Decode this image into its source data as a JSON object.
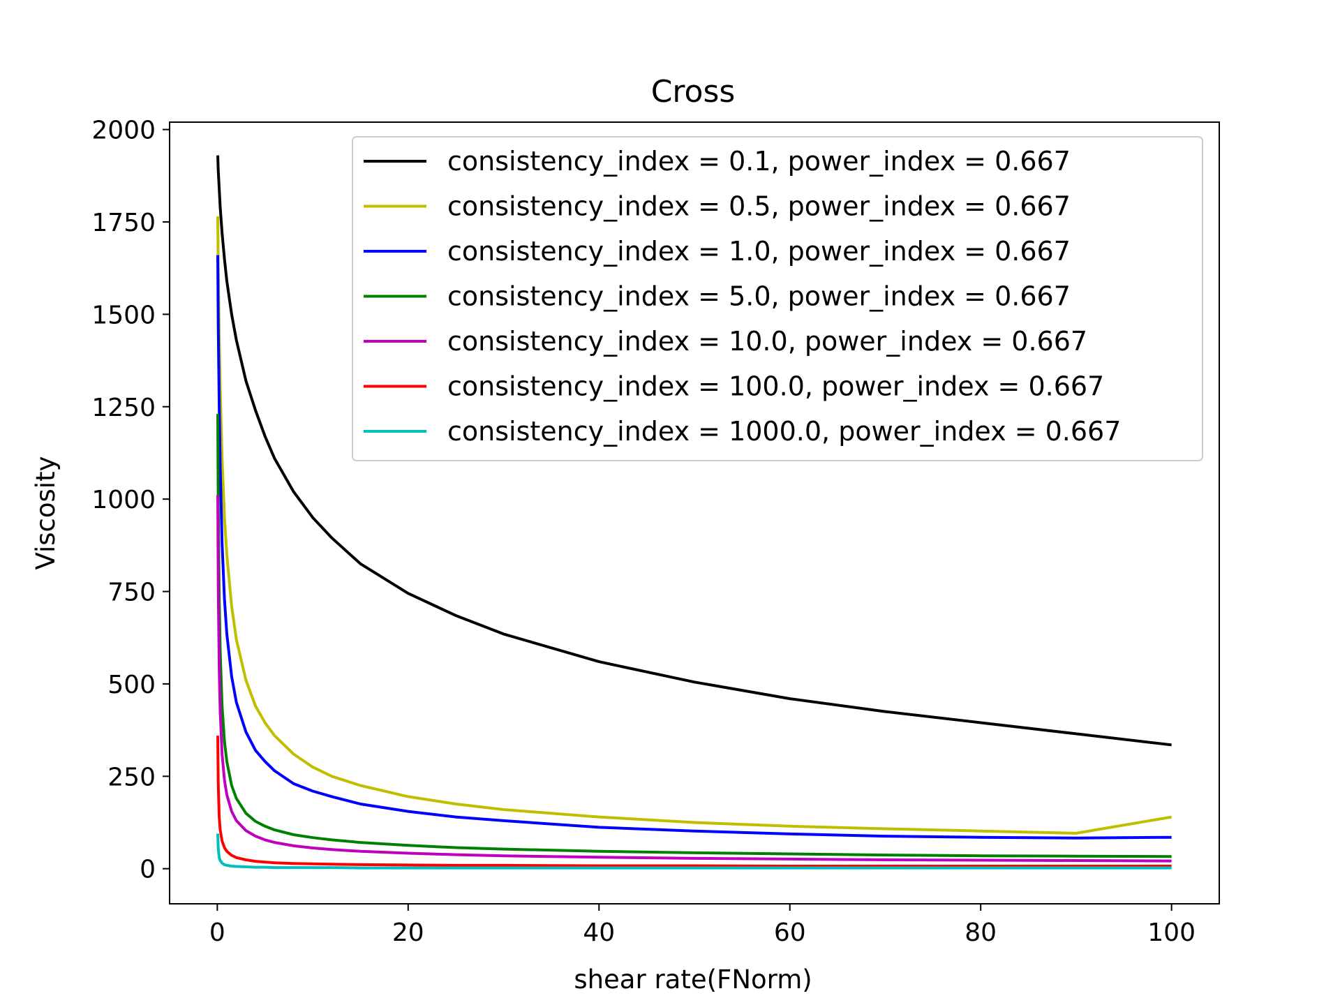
{
  "chart_data": {
    "type": "line",
    "title": "Cross",
    "xlabel": "shear rate(FNorm)",
    "ylabel": "Viscosity",
    "xlim": [
      -5,
      105
    ],
    "ylim": [
      -95,
      2020
    ],
    "x_ticks": [
      0,
      20,
      40,
      60,
      80,
      100
    ],
    "y_ticks": [
      0,
      250,
      500,
      750,
      1000,
      1250,
      1500,
      1750,
      2000
    ],
    "grid": false,
    "legend_position": "upper-right",
    "x": [
      0.05,
      0.1,
      0.2,
      0.3,
      0.5,
      0.75,
      1,
      1.5,
      2,
      3,
      4,
      5,
      6,
      8,
      10,
      12,
      15,
      20,
      25,
      30,
      40,
      50,
      60,
      70,
      80,
      90,
      100
    ],
    "series": [
      {
        "name": "consistency_index = 0.1, power_index = 0.667",
        "color": "#000000",
        "values": [
          1930,
          1890,
          1840,
          1790,
          1720,
          1650,
          1590,
          1500,
          1430,
          1320,
          1240,
          1170,
          1110,
          1020,
          950,
          895,
          825,
          745,
          685,
          635,
          560,
          505,
          460,
          425,
          395,
          365,
          335
        ]
      },
      {
        "name": "consistency_index = 0.5, power_index = 0.667",
        "color": "#bfbf00",
        "values": [
          1765,
          1620,
          1440,
          1300,
          1110,
          950,
          850,
          710,
          620,
          510,
          440,
          395,
          360,
          310,
          275,
          250,
          225,
          195,
          175,
          160,
          140,
          125,
          115,
          108,
          102,
          96,
          140
        ]
      },
      {
        "name": "consistency_index = 1.0, power_index = 0.667",
        "color": "#0000ff",
        "values": [
          1660,
          1470,
          1250,
          1090,
          880,
          730,
          635,
          520,
          450,
          370,
          320,
          290,
          265,
          230,
          210,
          195,
          175,
          155,
          140,
          130,
          112,
          102,
          94,
          88,
          85,
          83,
          85
        ]
      },
      {
        "name": "consistency_index = 5.0, power_index = 0.667",
        "color": "#008000",
        "values": [
          1230,
          980,
          730,
          590,
          440,
          345,
          290,
          225,
          190,
          150,
          128,
          115,
          105,
          92,
          84,
          78,
          71,
          63,
          57,
          53,
          47,
          43,
          40,
          37,
          35,
          34,
          33
        ]
      },
      {
        "name": "consistency_index = 10.0, power_index = 0.667",
        "color": "#bf00bf",
        "values": [
          1010,
          760,
          540,
          425,
          310,
          240,
          200,
          155,
          130,
          103,
          88,
          78,
          71,
          62,
          56,
          52,
          47,
          42,
          38,
          35,
          31,
          28,
          26,
          24,
          23,
          22,
          21
        ]
      },
      {
        "name": "consistency_index = 100.0, power_index = 0.667",
        "color": "#ff0000",
        "values": [
          360,
          230,
          140,
          105,
          75,
          57,
          47,
          36,
          30,
          24,
          20,
          18,
          16,
          14,
          13,
          12,
          11,
          10,
          9,
          9,
          8,
          8,
          7,
          7,
          7,
          7,
          7
        ]
      },
      {
        "name": "consistency_index = 1000.0, power_index = 0.667",
        "color": "#00bfbf",
        "values": [
          95,
          55,
          30,
          22,
          15,
          11,
          9,
          7,
          6,
          5,
          4,
          4,
          3,
          3,
          3,
          3,
          2,
          2,
          2,
          2,
          2,
          2,
          2,
          2,
          2,
          2,
          2
        ]
      }
    ]
  }
}
